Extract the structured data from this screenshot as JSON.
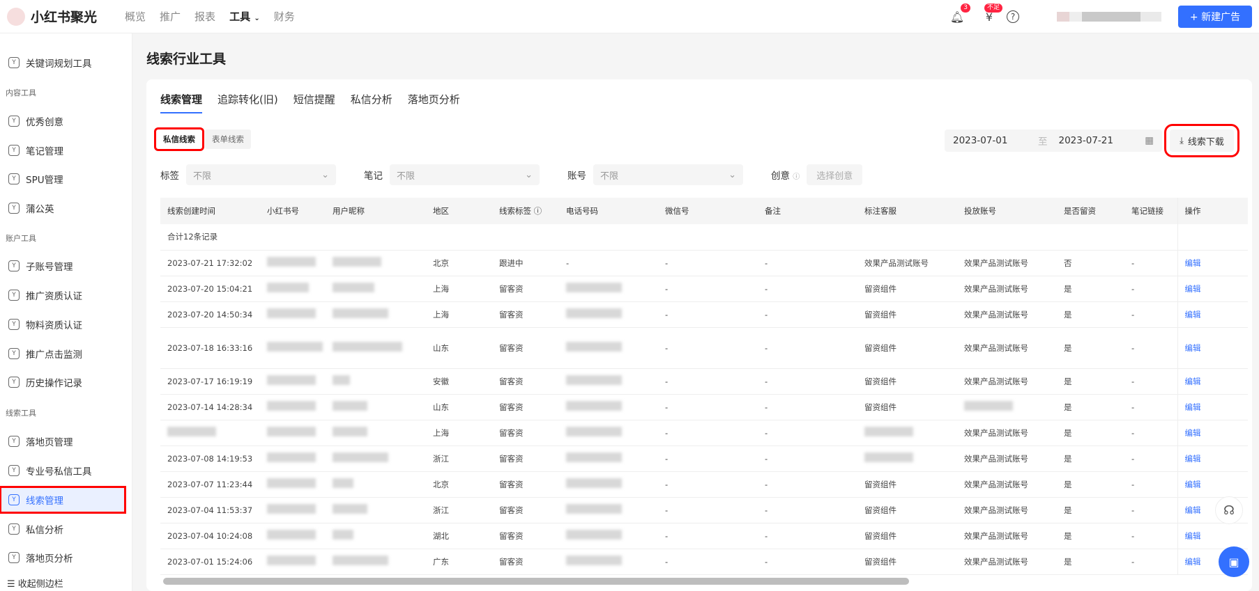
{
  "header": {
    "brand": "小红书聚光",
    "nav": [
      "概览",
      "推广",
      "报表",
      "工具",
      "财务"
    ],
    "active_nav": "工具",
    "notification_count": "3",
    "balance_badge": "不足",
    "new_ad_label": "+ 新建广告"
  },
  "sidebar": {
    "items": [
      {
        "label": "关键词规划工具"
      },
      {
        "section": "内容工具"
      },
      {
        "label": "优秀创意"
      },
      {
        "label": "笔记管理"
      },
      {
        "label": "SPU管理"
      },
      {
        "label": "蒲公英"
      },
      {
        "section": "账户工具"
      },
      {
        "label": "子账号管理"
      },
      {
        "label": "推广资质认证"
      },
      {
        "label": "物料资质认证"
      },
      {
        "label": "推广点击监测"
      },
      {
        "label": "历史操作记录"
      },
      {
        "section": "线索工具"
      },
      {
        "label": "落地页管理"
      },
      {
        "label": "专业号私信工具"
      },
      {
        "label": "线索管理",
        "active": true
      },
      {
        "label": "私信分析"
      },
      {
        "label": "落地页分析"
      }
    ],
    "collapse_label": "收起侧边栏"
  },
  "page_title": "线索行业工具",
  "tabs": [
    "线索管理",
    "追踪转化(旧)",
    "短信提醒",
    "私信分析",
    "落地页分析"
  ],
  "subtabs": [
    "私信线索",
    "表单线索"
  ],
  "date_range": {
    "start": "2023-07-01",
    "separator": "至",
    "end": "2023-07-21"
  },
  "download_label": "线索下载",
  "filters": [
    {
      "label": "标签",
      "value": "不限"
    },
    {
      "label": "笔记",
      "value": "不限"
    },
    {
      "label": "账号",
      "value": "不限"
    }
  ],
  "creative_filter": {
    "label": "创意",
    "placeholder": "选择创意"
  },
  "table": {
    "columns": [
      "线索创建时间",
      "小红书号",
      "用户昵称",
      "地区",
      "线索标签 ⓘ",
      "电话号码",
      "微信号",
      "备注",
      "标注客服",
      "投放账号",
      "是否留资",
      "笔记链接",
      "操作"
    ],
    "summary": "合计12条记录",
    "rows": [
      [
        "2023-07-21 17:32:02",
        "",
        "",
        "北京",
        "跟进中",
        "-",
        "-",
        "-",
        "效果产品测试账号",
        "效果产品测试账号",
        "否",
        "-",
        "编辑"
      ],
      [
        "2023-07-20 15:04:21",
        "",
        "",
        "上海",
        "留客资",
        "",
        "-",
        "-",
        "留资组件",
        "效果产品测试账号",
        "是",
        "-",
        "编辑"
      ],
      [
        "2023-07-20 14:50:34",
        "",
        "",
        "上海",
        "留客资",
        "",
        "-",
        "-",
        "留资组件",
        "效果产品测试账号",
        "是",
        "-",
        "编辑"
      ],
      [
        "2023-07-18 16:33:16",
        "",
        "",
        "山东",
        "留客资",
        "",
        "-",
        "-",
        "留资组件",
        "效果产品测试账号",
        "是",
        "-",
        "编辑"
      ],
      [
        "2023-07-17 16:19:19",
        "",
        "",
        "安徽",
        "留客资",
        "",
        "-",
        "-",
        "留资组件",
        "效果产品测试账号",
        "是",
        "-",
        "编辑"
      ],
      [
        "2023-07-14 14:28:34",
        "",
        "",
        "山东",
        "留客资",
        "",
        "-",
        "-",
        "留资组件",
        "",
        "是",
        "-",
        "编辑"
      ],
      [
        "",
        "",
        "",
        "上海",
        "留客资",
        "",
        "-",
        "-",
        "",
        "效果产品测试账号",
        "是",
        "-",
        "编辑"
      ],
      [
        "2023-07-08 14:19:53",
        "",
        "",
        "浙江",
        "留客资",
        "",
        "-",
        "-",
        "",
        "效果产品测试账号",
        "是",
        "-",
        "编辑"
      ],
      [
        "2023-07-07 11:23:44",
        "",
        "",
        "北京",
        "留客资",
        "",
        "-",
        "-",
        "留资组件",
        "效果产品测试账号",
        "是",
        "-",
        "编辑"
      ],
      [
        "2023-07-04 11:53:37",
        "",
        "",
        "浙江",
        "留客资",
        "",
        "-",
        "-",
        "留资组件",
        "效果产品测试账号",
        "是",
        "-",
        "编辑"
      ],
      [
        "2023-07-04 10:24:08",
        "",
        "",
        "湖北",
        "留客资",
        "",
        "-",
        "-",
        "留资组件",
        "效果产品测试账号",
        "是",
        "-",
        "编辑"
      ],
      [
        "2023-07-01 15:24:06",
        "",
        "",
        "广东",
        "留客资",
        "",
        "-",
        "-",
        "留资组件",
        "效果产品测试账号",
        "是",
        "-",
        "编辑"
      ]
    ]
  },
  "colors": {
    "accent": "#3370ff",
    "badge": "#ff2442",
    "highlight": "#ff0000"
  }
}
